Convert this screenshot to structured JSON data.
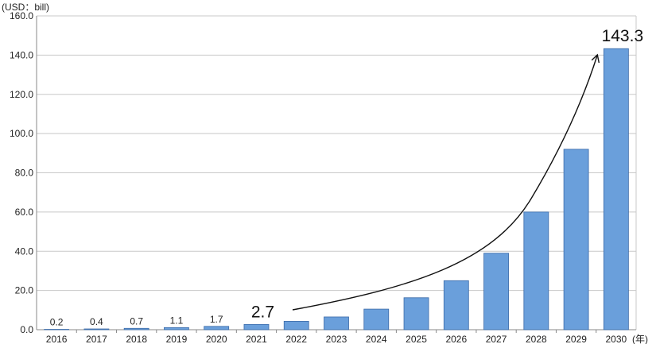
{
  "chart_data": {
    "type": "bar",
    "y_unit_label": "(USD：bill)",
    "x_unit_label": "(年)",
    "categories": [
      "2016",
      "2017",
      "2018",
      "2019",
      "2020",
      "2021",
      "2022",
      "2023",
      "2024",
      "2025",
      "2026",
      "2027",
      "2028",
      "2029",
      "2030"
    ],
    "values": [
      0.2,
      0.4,
      0.7,
      1.1,
      1.7,
      2.7,
      4.3,
      6.5,
      10.5,
      16.3,
      25.0,
      39.0,
      60.0,
      92.0,
      143.3
    ],
    "data_labels": [
      {
        "index": 0,
        "text": "0.2"
      },
      {
        "index": 1,
        "text": "0.4"
      },
      {
        "index": 2,
        "text": "0.7"
      },
      {
        "index": 3,
        "text": "1.1"
      },
      {
        "index": 4,
        "text": "1.7"
      }
    ],
    "annotations": [
      {
        "index": 5,
        "text": "2.7"
      },
      {
        "index": 14,
        "text": "143.3"
      }
    ],
    "y_ticks": [
      "0.0",
      "20.0",
      "40.0",
      "60.0",
      "80.0",
      "100.0",
      "120.0",
      "140.0",
      "160.0"
    ],
    "ylim": [
      0,
      160
    ],
    "grid": true,
    "colors": {
      "bar": "#6a9fdb",
      "bar_stroke": "#3a6aa8",
      "grid": "#c8c8c8",
      "axis": "#888888",
      "arrow": "#111111"
    }
  }
}
